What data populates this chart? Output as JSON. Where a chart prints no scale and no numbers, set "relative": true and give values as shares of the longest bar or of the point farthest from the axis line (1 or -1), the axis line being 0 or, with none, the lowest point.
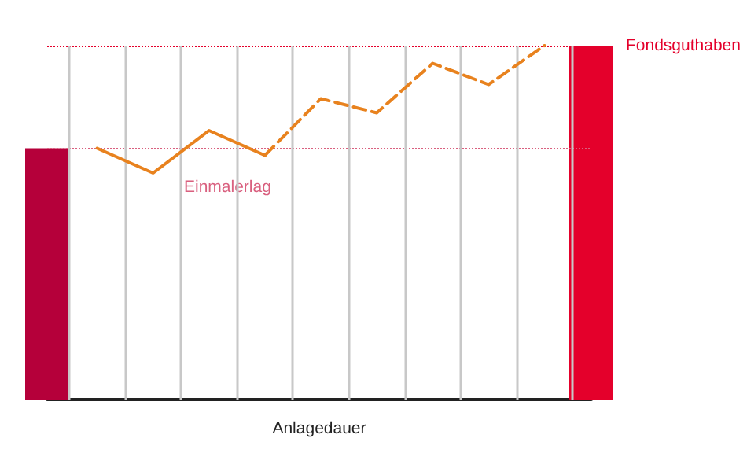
{
  "chart_data": [
    {
      "type": "bar",
      "xlabel": "Anlagedauer",
      "relative": true,
      "categories": [
        null,
        null
      ],
      "colors": [
        "#b5003a",
        "#e4002b"
      ],
      "values": [
        0.71,
        1
      ],
      "ref_lines": [
        {
          "axis": "y",
          "value": 0.71,
          "label": "Einmalerlag",
          "color": "#d9607f",
          "line_style": "dotted"
        },
        {
          "axis": "y",
          "value": 1,
          "label": "Fondsguthaben",
          "color": "#e4002b",
          "line_style": "dotted"
        }
      ]
    },
    {
      "type": "line",
      "relative": true,
      "grid": "x",
      "marker": "none",
      "categories": [
        null,
        null,
        null,
        null,
        null,
        null,
        null,
        null,
        null
      ],
      "series": [
        {
          "color": "#e8821e",
          "line_style": "solid",
          "values": [
            0.71,
            0.64,
            0.76,
            0.69,
            null,
            null,
            null,
            null,
            null
          ]
        },
        {
          "color": "#e8821e",
          "line_style": "dashed",
          "values": [
            null,
            null,
            null,
            0.69,
            0.85,
            0.81,
            0.95,
            0.89,
            1
          ]
        }
      ]
    }
  ]
}
